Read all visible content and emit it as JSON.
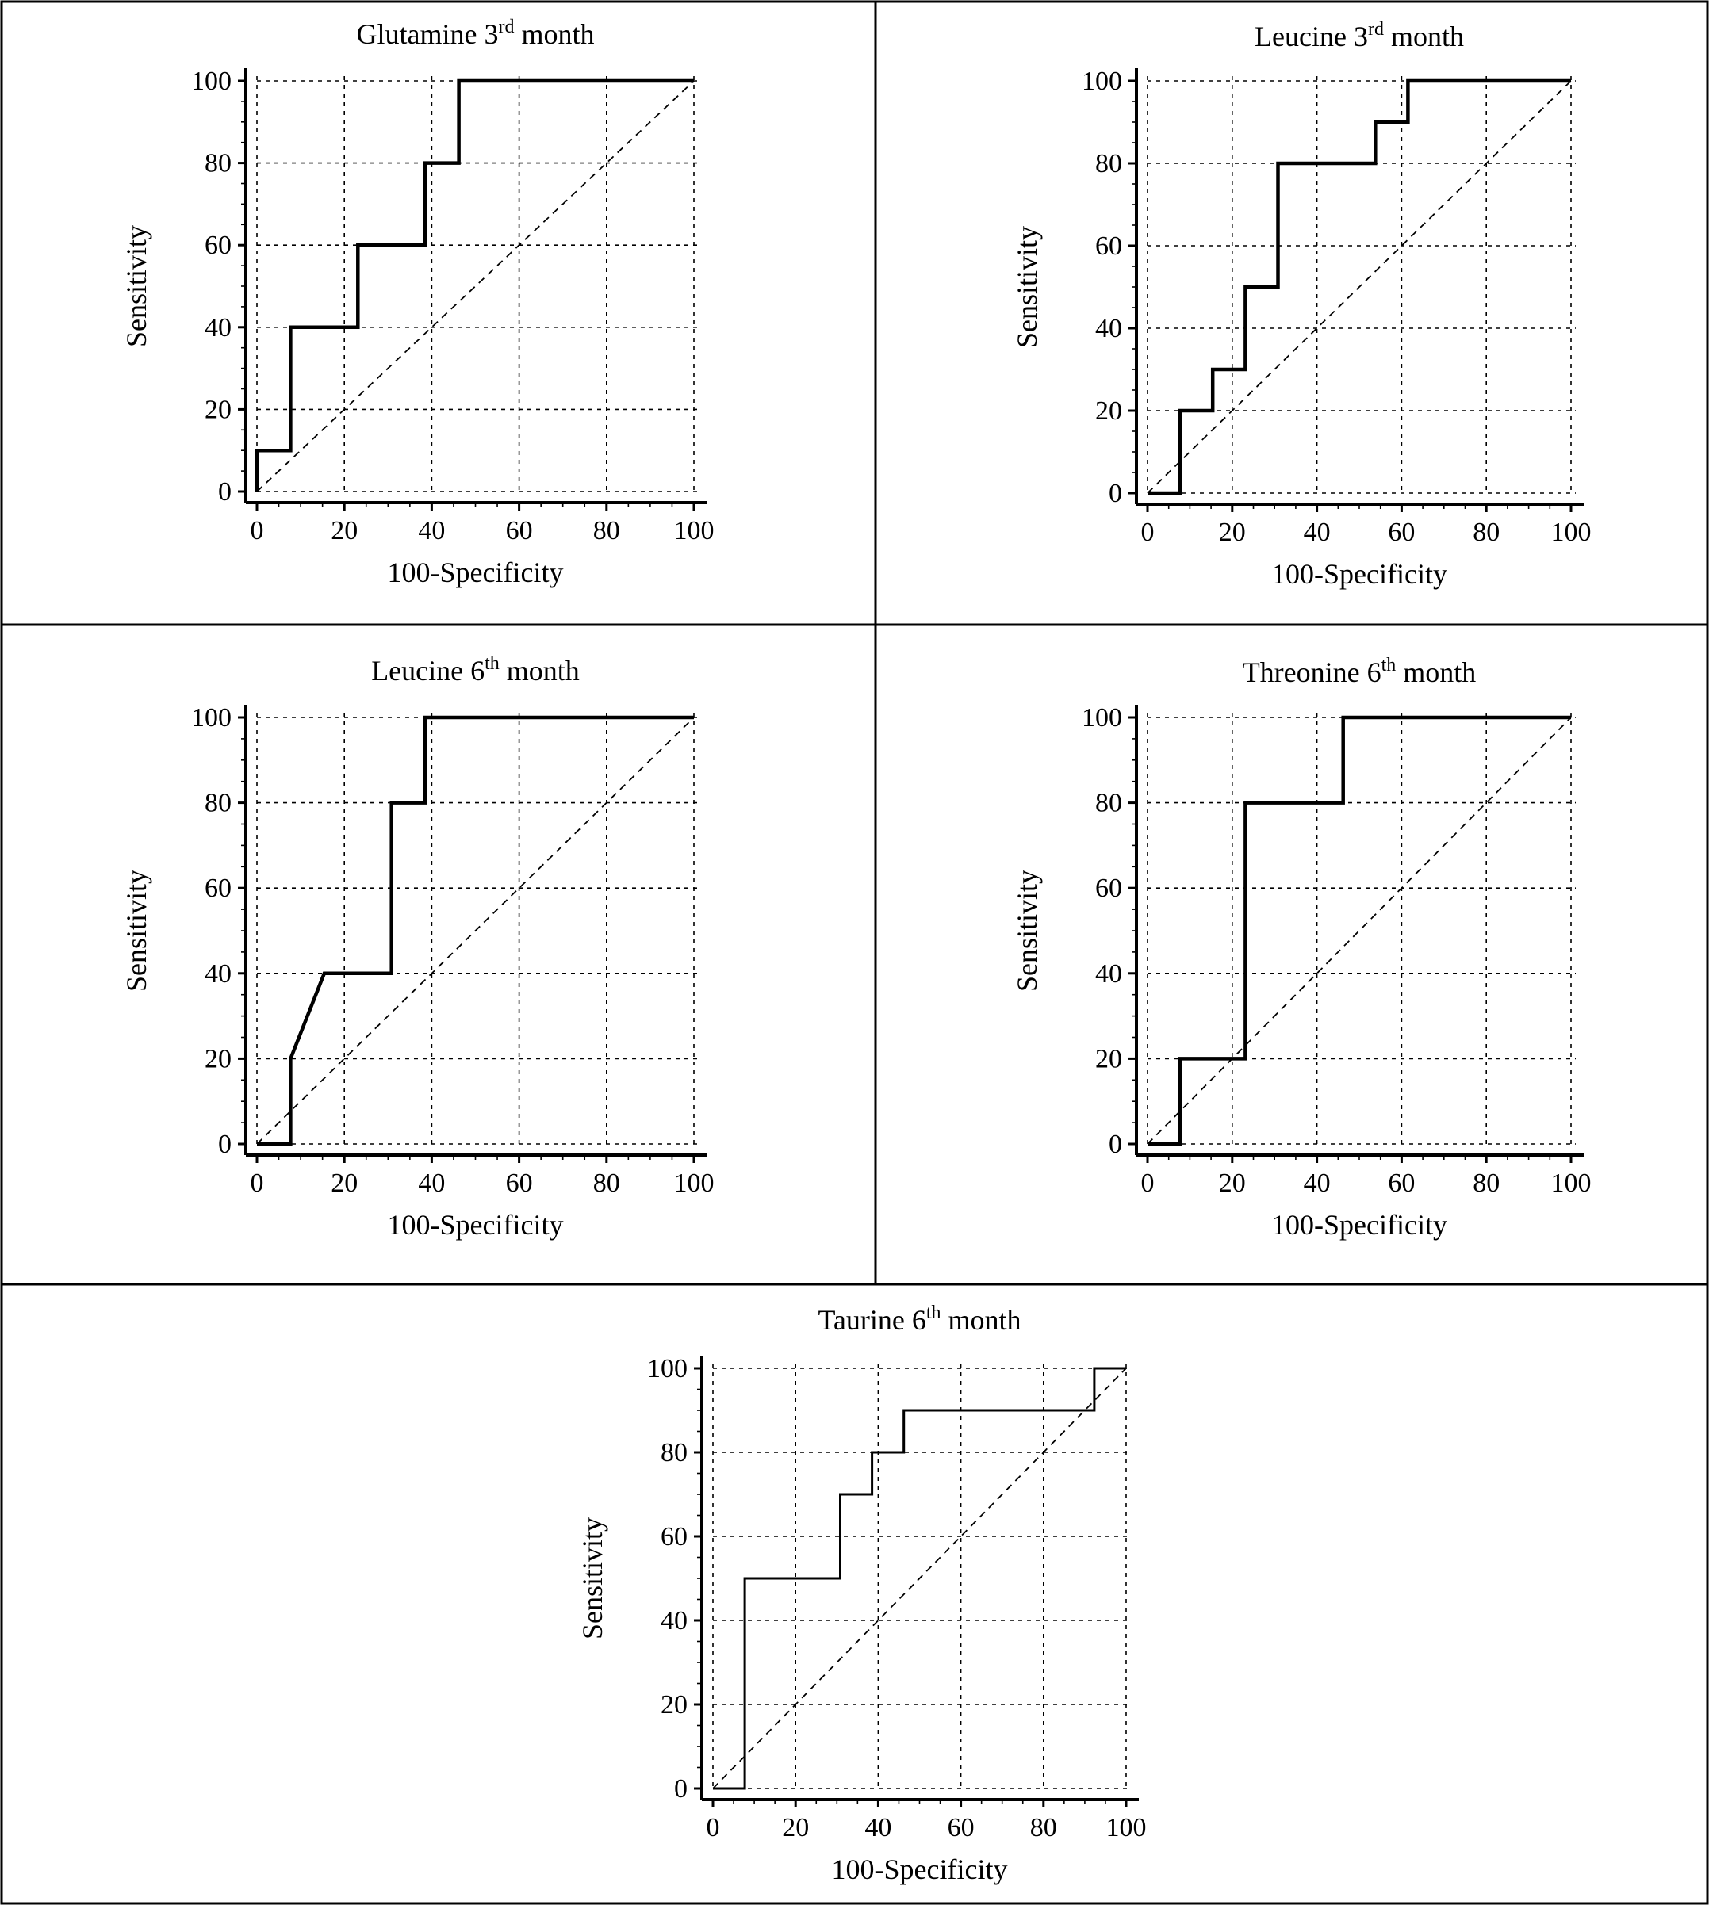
{
  "figure": {
    "layout": "five ROC panels: two rows of two, one centered below"
  },
  "chart_data": [
    {
      "type": "line",
      "title": {
        "main": "Glutamine 3",
        "sup": "rd",
        "rest": " month"
      },
      "xlabel": "100-Specificity",
      "ylabel": "Sensitivity",
      "xlim": [
        0,
        100
      ],
      "ylim": [
        0,
        100
      ],
      "xticks": [
        "0",
        "20",
        "40",
        "60",
        "80",
        "100"
      ],
      "yticks": [
        "0",
        "20",
        "40",
        "60",
        "80",
        "100"
      ],
      "grid": true,
      "reference_line": "diagonal",
      "line_style": "thick",
      "series": [
        {
          "x": [
            0,
            0,
            7.7,
            7.7,
            23.1,
            23.1,
            38.5,
            38.5,
            46.2,
            46.2,
            100
          ],
          "y": [
            0,
            10,
            10,
            40,
            40,
            60,
            60,
            80,
            80,
            100,
            100
          ]
        }
      ]
    },
    {
      "type": "line",
      "title": {
        "main": "Leucine 3",
        "sup": "rd",
        "rest": " month"
      },
      "xlabel": "100-Specificity",
      "ylabel": "Sensitivity",
      "xlim": [
        0,
        100
      ],
      "ylim": [
        0,
        100
      ],
      "xticks": [
        "0",
        "20",
        "40",
        "60",
        "80",
        "100"
      ],
      "yticks": [
        "0",
        "20",
        "40",
        "60",
        "80",
        "100"
      ],
      "grid": true,
      "reference_line": "diagonal",
      "line_style": "thick",
      "series": [
        {
          "x": [
            0,
            7.7,
            7.7,
            15.4,
            15.4,
            23.1,
            23.1,
            30.8,
            30.8,
            53.8,
            53.8,
            61.5,
            61.5,
            100
          ],
          "y": [
            0,
            0,
            20,
            20,
            30,
            30,
            50,
            50,
            80,
            80,
            90,
            90,
            100,
            100
          ]
        }
      ]
    },
    {
      "type": "line",
      "title": {
        "main": "Leucine 6",
        "sup": "th",
        "rest": " month"
      },
      "xlabel": "100-Specificity",
      "ylabel": "Sensitivity",
      "xlim": [
        0,
        100
      ],
      "ylim": [
        0,
        100
      ],
      "xticks": [
        "0",
        "20",
        "40",
        "60",
        "80",
        "100"
      ],
      "yticks": [
        "0",
        "20",
        "40",
        "60",
        "80",
        "100"
      ],
      "grid": true,
      "reference_line": "diagonal",
      "line_style": "thick",
      "series": [
        {
          "x": [
            0,
            7.7,
            7.7,
            15.4,
            30.8,
            30.8,
            38.5,
            38.5,
            100
          ],
          "y": [
            0,
            0,
            20,
            40,
            40,
            80,
            80,
            100,
            100
          ]
        }
      ]
    },
    {
      "type": "line",
      "title": {
        "main": "Threonine 6",
        "sup": "th",
        "rest": " month"
      },
      "xlabel": "100-Specificity",
      "ylabel": "Sensitivity",
      "xlim": [
        0,
        100
      ],
      "ylim": [
        0,
        100
      ],
      "xticks": [
        "0",
        "20",
        "40",
        "60",
        "80",
        "100"
      ],
      "yticks": [
        "0",
        "20",
        "40",
        "60",
        "80",
        "100"
      ],
      "grid": true,
      "reference_line": "diagonal",
      "line_style": "thick",
      "series": [
        {
          "x": [
            0,
            7.7,
            7.7,
            23.1,
            23.1,
            46.2,
            46.2,
            100
          ],
          "y": [
            0,
            0,
            20,
            20,
            80,
            80,
            100,
            100
          ]
        }
      ]
    },
    {
      "type": "line",
      "title": {
        "main": "Taurine 6",
        "sup": "th",
        "rest": " month"
      },
      "xlabel": "100-Specificity",
      "ylabel": "Sensitivity",
      "xlim": [
        0,
        100
      ],
      "ylim": [
        0,
        100
      ],
      "xticks": [
        "0",
        "20",
        "40",
        "60",
        "80",
        "100"
      ],
      "yticks": [
        "0",
        "20",
        "40",
        "60",
        "80",
        "100"
      ],
      "grid": true,
      "reference_line": "diagonal",
      "line_style": "thin",
      "series": [
        {
          "x": [
            0,
            7.7,
            7.7,
            30.8,
            30.8,
            38.5,
            38.5,
            46.2,
            46.2,
            92.3,
            92.3,
            100
          ],
          "y": [
            0,
            0,
            50,
            50,
            70,
            70,
            80,
            80,
            90,
            90,
            100,
            100
          ]
        }
      ]
    }
  ]
}
